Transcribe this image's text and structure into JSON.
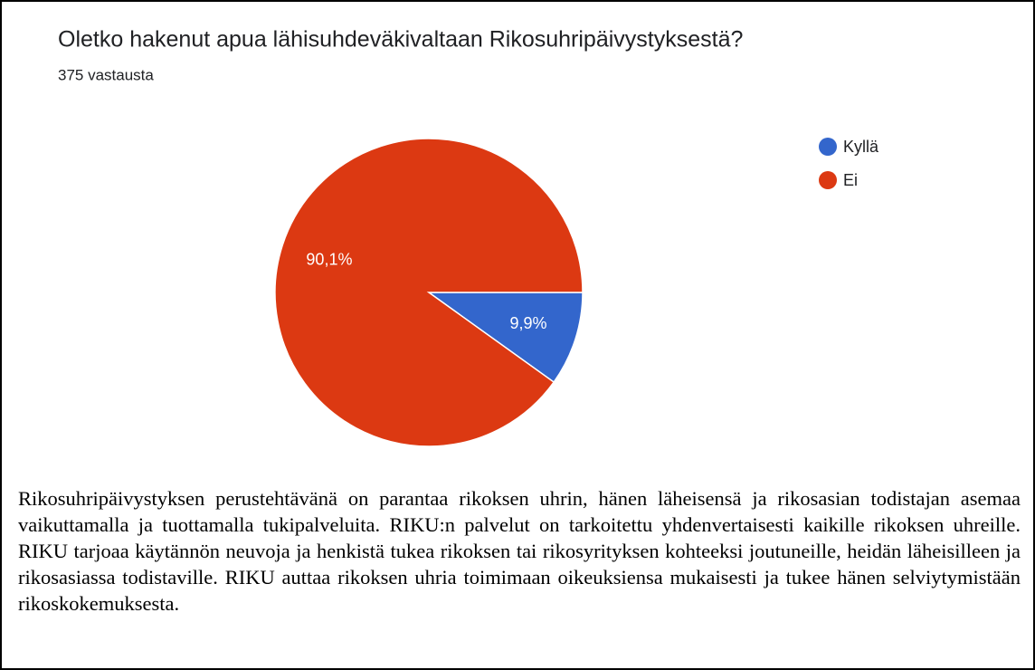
{
  "chart_data": {
    "type": "pie",
    "title": "Oletko hakenut apua lähisuhdeväkivaltaan Rikosuhripäivystyksestä?",
    "subtitle": "375 vastausta",
    "categories": [
      "Kyllä",
      "Ei"
    ],
    "values": [
      9.9,
      90.1
    ],
    "value_labels": [
      "9,9%",
      "90,1%"
    ],
    "colors": [
      "#3366cc",
      "#dc3912"
    ],
    "legend": "right"
  },
  "caption": "Rikosuhripäivystyksen perustehtävänä on parantaa rikoksen uhrin, hänen läheisensä ja rikosasian todistajan asemaa vaikuttamalla ja tuottamalla tukipalveluita. RIKU:n palvelut on tarkoitettu yhdenvertaisesti kaikille rikoksen uhreille. RIKU tarjoaa käytännön neuvoja ja henkistä tukea rikoksen tai rikosyrityksen kohteeksi joutuneille, heidän läheisilleen ja rikosasiassa todistaville. RIKU auttaa rikoksen uhria toimimaan oikeuksiensa mukaisesti ja tukee hänen selviytymistään rikoskokemuksesta."
}
